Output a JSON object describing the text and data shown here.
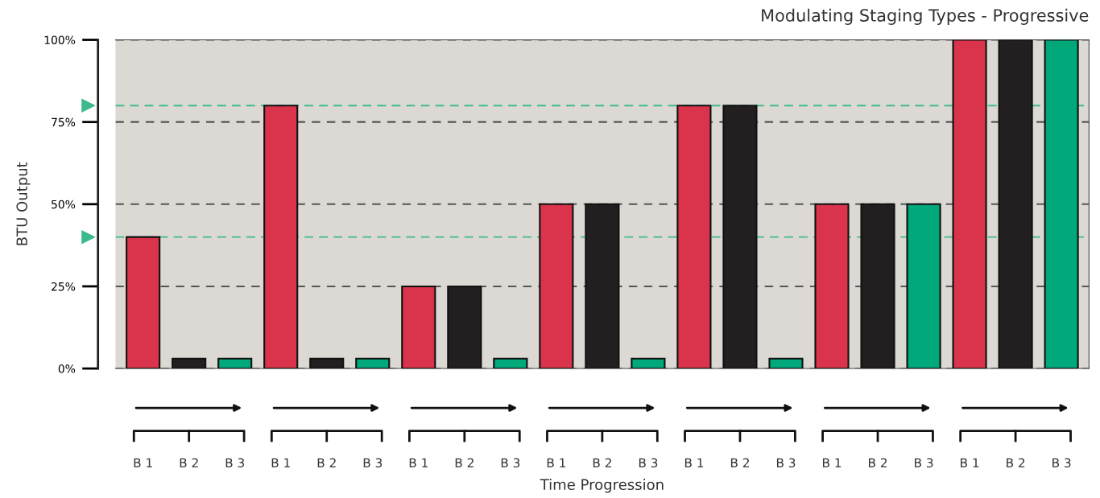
{
  "chart_data": {
    "type": "bar",
    "title": "Modulating Staging Types - Progressive",
    "xlabel": "Time Progression",
    "ylabel": "BTU Output",
    "categories": [
      "B 1",
      "B 2",
      "B 3",
      "B 1",
      "B 2",
      "B 3",
      "B 1",
      "B 2",
      "B 3",
      "B 1",
      "B 2",
      "B 3",
      "B 1",
      "B 2",
      "B 3",
      "B 1",
      "B 2",
      "B 3",
      "B 1",
      "B 2",
      "B 3"
    ],
    "values": [
      40,
      3,
      3,
      80,
      3,
      3,
      25,
      25,
      3,
      50,
      50,
      3,
      80,
      80,
      3,
      50,
      50,
      50,
      100,
      100,
      100
    ],
    "colors": [
      "#d9344b",
      "#231f20",
      "#00a87a",
      "#d9344b",
      "#231f20",
      "#00a87a",
      "#d9344b",
      "#231f20",
      "#00a87a",
      "#d9344b",
      "#231f20",
      "#00a87a",
      "#d9344b",
      "#231f20",
      "#00a87a",
      "#d9344b",
      "#231f20",
      "#00a87a",
      "#d9344b",
      "#231f20",
      "#00a87a"
    ],
    "ylim": [
      0,
      100
    ],
    "yticks": [
      {
        "value": 0,
        "label": "0%"
      },
      {
        "value": 25,
        "label": "25%"
      },
      {
        "value": 50,
        "label": "50%"
      },
      {
        "value": 75,
        "label": "75%"
      },
      {
        "value": 100,
        "label": "100%"
      }
    ],
    "grid": "y",
    "legend": false,
    "ref_lines": [
      {
        "axis": "y",
        "value": 40,
        "color": "#3dba8a",
        "line_style": "dashed"
      },
      {
        "axis": "y",
        "value": 80,
        "color": "#3dba8a",
        "line_style": "dashed"
      }
    ]
  }
}
